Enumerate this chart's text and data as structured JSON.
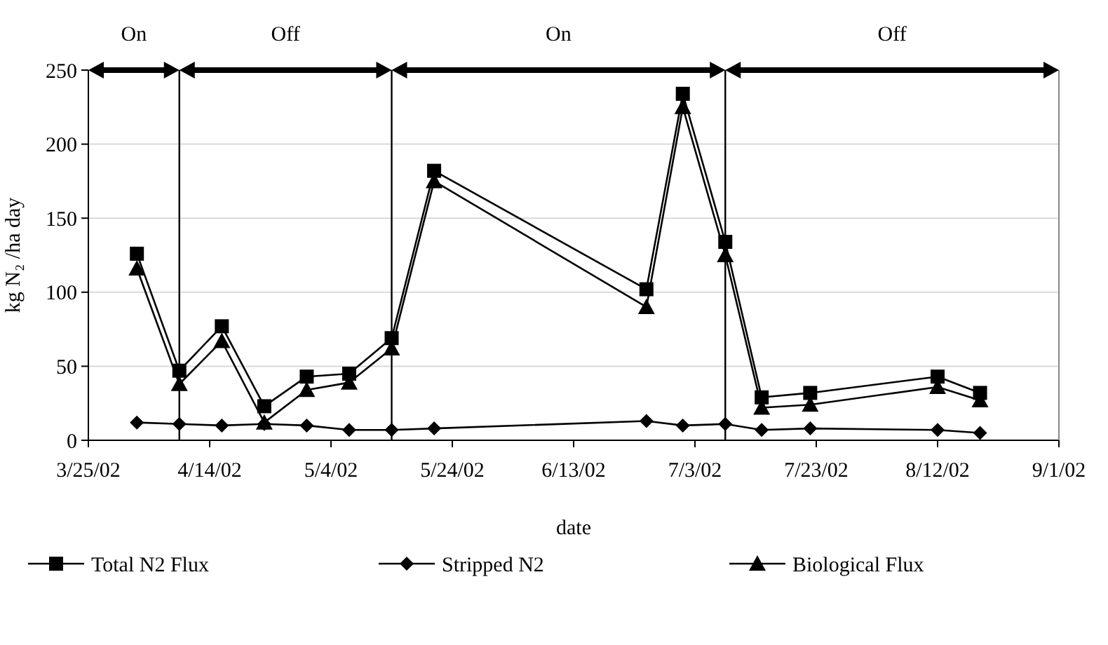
{
  "chart_data": {
    "type": "line",
    "xlabel": "date",
    "ylabel": "kg N₂ /ha day",
    "x": [
      "2002-04-02",
      "2002-04-09",
      "2002-04-16",
      "2002-04-23",
      "2002-04-30",
      "2002-05-07",
      "2002-05-14",
      "2002-05-21",
      "2002-06-25",
      "2002-07-01",
      "2002-07-08",
      "2002-07-14",
      "2002-07-22",
      "2002-08-12",
      "2002-08-19"
    ],
    "series": [
      {
        "name": "Total N2 Flux",
        "color": "#000000",
        "marker": "square",
        "values": [
          126,
          47,
          77,
          23,
          43,
          45,
          69,
          182,
          102,
          234,
          134,
          29,
          32,
          43,
          32
        ]
      },
      {
        "name": "Stripped N2",
        "color": "#000000",
        "marker": "diamond",
        "values": [
          12,
          11,
          10,
          11,
          10,
          7,
          7,
          8,
          13,
          10,
          11,
          7,
          8,
          7,
          5
        ]
      },
      {
        "name": "Biological Flux",
        "color": "#000000",
        "marker": "triangle",
        "values": [
          116,
          38,
          67,
          12,
          34,
          39,
          62,
          175,
          90,
          225,
          125,
          22,
          24,
          36,
          27
        ]
      }
    ],
    "xlim": [
      "2002-03-25",
      "2002-09-01"
    ],
    "xticks": [
      {
        "value": "2002-03-25",
        "label": "3/25/02"
      },
      {
        "value": "2002-04-14",
        "label": "4/14/02"
      },
      {
        "value": "2002-05-04",
        "label": "5/4/02"
      },
      {
        "value": "2002-05-24",
        "label": "5/24/02"
      },
      {
        "value": "2002-06-13",
        "label": "6/13/02"
      },
      {
        "value": "2002-07-03",
        "label": "7/3/02"
      },
      {
        "value": "2002-07-23",
        "label": "7/23/02"
      },
      {
        "value": "2002-08-12",
        "label": "8/12/02"
      },
      {
        "value": "2002-09-01",
        "label": "9/1/02"
      }
    ],
    "ylim": [
      0,
      250
    ],
    "yticks": [
      0,
      50,
      100,
      150,
      200,
      250
    ],
    "ref_lines": [
      {
        "axis": "x",
        "value": "2002-04-09"
      },
      {
        "axis": "x",
        "value": "2002-05-14"
      },
      {
        "axis": "x",
        "value": "2002-07-08"
      }
    ],
    "annotations": [
      "On",
      "Off",
      "On",
      "Off"
    ],
    "grid": "y",
    "legend": "bottom",
    "line_style": "solid"
  }
}
